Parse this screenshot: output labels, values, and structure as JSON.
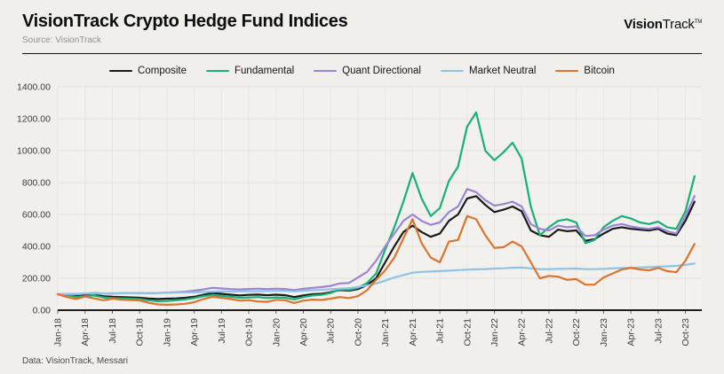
{
  "header": {
    "title": "VisionTrack Crypto Hedge Fund Indices",
    "subtitle": "Source: VisionTrack",
    "logo_bold": "Vision",
    "logo_regular": "Track",
    "logo_tm": "TM"
  },
  "footer": {
    "note": "Data: VisionTrack, Messari"
  },
  "colors": {
    "background": "#f0efec",
    "plot_background": "#f2f1ee",
    "gridline": "#dededa",
    "axis": "#1c1c1c",
    "composite": "#1a1a1a",
    "fundamental": "#17b178",
    "quant_directional": "#9d84d6",
    "market_neutral": "#8fc3e4",
    "bitcoin": "#dd742e"
  },
  "chart_data": {
    "type": "line",
    "title": "VisionTrack Crypto Hedge Fund Indices",
    "xlabel": "",
    "ylabel": "",
    "ylim": [
      0,
      1400
    ],
    "grid": true,
    "legend_position": "top",
    "y_ticks": [
      "0.00",
      "200.00",
      "400.00",
      "600.00",
      "800.00",
      "1000.00",
      "1200.00",
      "1400.00"
    ],
    "x_tick_labels": [
      "Jan-18",
      "Apr-18",
      "Jul-18",
      "Oct-18",
      "Jan-19",
      "Apr-19",
      "Jul-19",
      "Oct-19",
      "Jan-20",
      "Apr-20",
      "Jul-20",
      "Oct-20",
      "Jan-21",
      "Apr-21",
      "Jul-21",
      "Oct-21",
      "Jan-22",
      "Apr-22",
      "Jul-22",
      "Oct-22",
      "Jan-23",
      "Apr-23",
      "Jul-23",
      "Oct-23"
    ],
    "x_months": [
      "Jan-18",
      "Feb-18",
      "Mar-18",
      "Apr-18",
      "May-18",
      "Jun-18",
      "Jul-18",
      "Aug-18",
      "Sep-18",
      "Oct-18",
      "Nov-18",
      "Dec-18",
      "Jan-19",
      "Feb-19",
      "Mar-19",
      "Apr-19",
      "May-19",
      "Jun-19",
      "Jul-19",
      "Aug-19",
      "Sep-19",
      "Oct-19",
      "Nov-19",
      "Dec-19",
      "Jan-20",
      "Feb-20",
      "Mar-20",
      "Apr-20",
      "May-20",
      "Jun-20",
      "Jul-20",
      "Aug-20",
      "Sep-20",
      "Oct-20",
      "Nov-20",
      "Dec-20",
      "Jan-21",
      "Feb-21",
      "Mar-21",
      "Apr-21",
      "May-21",
      "Jun-21",
      "Jul-21",
      "Aug-21",
      "Sep-21",
      "Oct-21",
      "Nov-21",
      "Dec-21",
      "Jan-22",
      "Feb-22",
      "Mar-22",
      "Apr-22",
      "May-22",
      "Jun-22",
      "Jul-22",
      "Aug-22",
      "Sep-22",
      "Oct-22",
      "Nov-22",
      "Dec-22",
      "Jan-23",
      "Feb-23",
      "Mar-23",
      "Apr-23",
      "May-23",
      "Jun-23",
      "Jul-23",
      "Aug-23",
      "Sep-23",
      "Oct-23",
      "Nov-23"
    ],
    "series": [
      {
        "id": "composite",
        "name": "Composite",
        "color": "#1a1a1a",
        "values": [
          100,
          97,
          88,
          92,
          96,
          88,
          84,
          82,
          80,
          78,
          73,
          70,
          72,
          74,
          78,
          84,
          96,
          108,
          103,
          97,
          93,
          96,
          98,
          94,
          97,
          94,
          82,
          93,
          100,
          103,
          112,
          126,
          122,
          132,
          158,
          200,
          300,
          400,
          490,
          530,
          490,
          460,
          480,
          560,
          600,
          700,
          715,
          660,
          615,
          630,
          650,
          620,
          500,
          470,
          460,
          505,
          495,
          500,
          435,
          445,
          480,
          510,
          520,
          510,
          505,
          500,
          510,
          480,
          470,
          560,
          680
        ]
      },
      {
        "id": "fundamental",
        "name": "Fundamental",
        "color": "#17b178",
        "values": [
          100,
          95,
          83,
          88,
          92,
          80,
          76,
          74,
          72,
          70,
          62,
          56,
          58,
          62,
          68,
          76,
          88,
          95,
          90,
          84,
          78,
          80,
          82,
          76,
          80,
          78,
          68,
          82,
          92,
          96,
          108,
          130,
          126,
          140,
          170,
          230,
          380,
          520,
          680,
          860,
          700,
          590,
          640,
          810,
          900,
          1150,
          1240,
          1000,
          940,
          990,
          1050,
          950,
          650,
          470,
          520,
          560,
          570,
          550,
          420,
          440,
          520,
          560,
          590,
          575,
          550,
          540,
          555,
          520,
          510,
          620,
          840
        ]
      },
      {
        "id": "quant-directional",
        "name": "Quant Directional",
        "color": "#9d84d6",
        "values": [
          100,
          102,
          100,
          104,
          108,
          105,
          104,
          106,
          107,
          108,
          106,
          108,
          110,
          113,
          116,
          122,
          130,
          140,
          136,
          132,
          130,
          133,
          135,
          132,
          135,
          133,
          126,
          134,
          140,
          145,
          152,
          168,
          170,
          205,
          240,
          310,
          400,
          480,
          560,
          600,
          560,
          535,
          550,
          615,
          650,
          760,
          740,
          690,
          655,
          665,
          680,
          650,
          540,
          510,
          500,
          530,
          520,
          525,
          465,
          470,
          505,
          530,
          540,
          525,
          515,
          510,
          520,
          495,
          480,
          590,
          715
        ]
      },
      {
        "id": "market-neutral",
        "name": "Market Neutral",
        "color": "#8fc3e4",
        "values": [
          100,
          102,
          103,
          104,
          105,
          105,
          106,
          106,
          107,
          107,
          108,
          108,
          109,
          110,
          111,
          112,
          114,
          116,
          117,
          117,
          118,
          119,
          119,
          120,
          121,
          121,
          118,
          122,
          125,
          128,
          131,
          135,
          138,
          145,
          155,
          168,
          185,
          205,
          220,
          235,
          240,
          242,
          245,
          248,
          251,
          254,
          256,
          258,
          261,
          263,
          266,
          267,
          262,
          258,
          257,
          259,
          260,
          261,
          257,
          257,
          259,
          262,
          264,
          266,
          268,
          270,
          272,
          275,
          278,
          284,
          292
        ]
      },
      {
        "id": "bitcoin",
        "name": "Bitcoin",
        "color": "#dd742e",
        "values": [
          100,
          82,
          70,
          85,
          74,
          62,
          72,
          66,
          64,
          61,
          46,
          36,
          34,
          36,
          40,
          50,
          70,
          84,
          78,
          70,
          60,
          63,
          55,
          52,
          65,
          62,
          45,
          60,
          66,
          64,
          72,
          82,
          76,
          88,
          125,
          190,
          250,
          330,
          450,
          570,
          420,
          330,
          300,
          430,
          440,
          590,
          570,
          470,
          390,
          395,
          430,
          400,
          300,
          200,
          215,
          210,
          190,
          195,
          160,
          160,
          205,
          230,
          255,
          265,
          255,
          250,
          265,
          245,
          238,
          310,
          415
        ]
      }
    ]
  }
}
